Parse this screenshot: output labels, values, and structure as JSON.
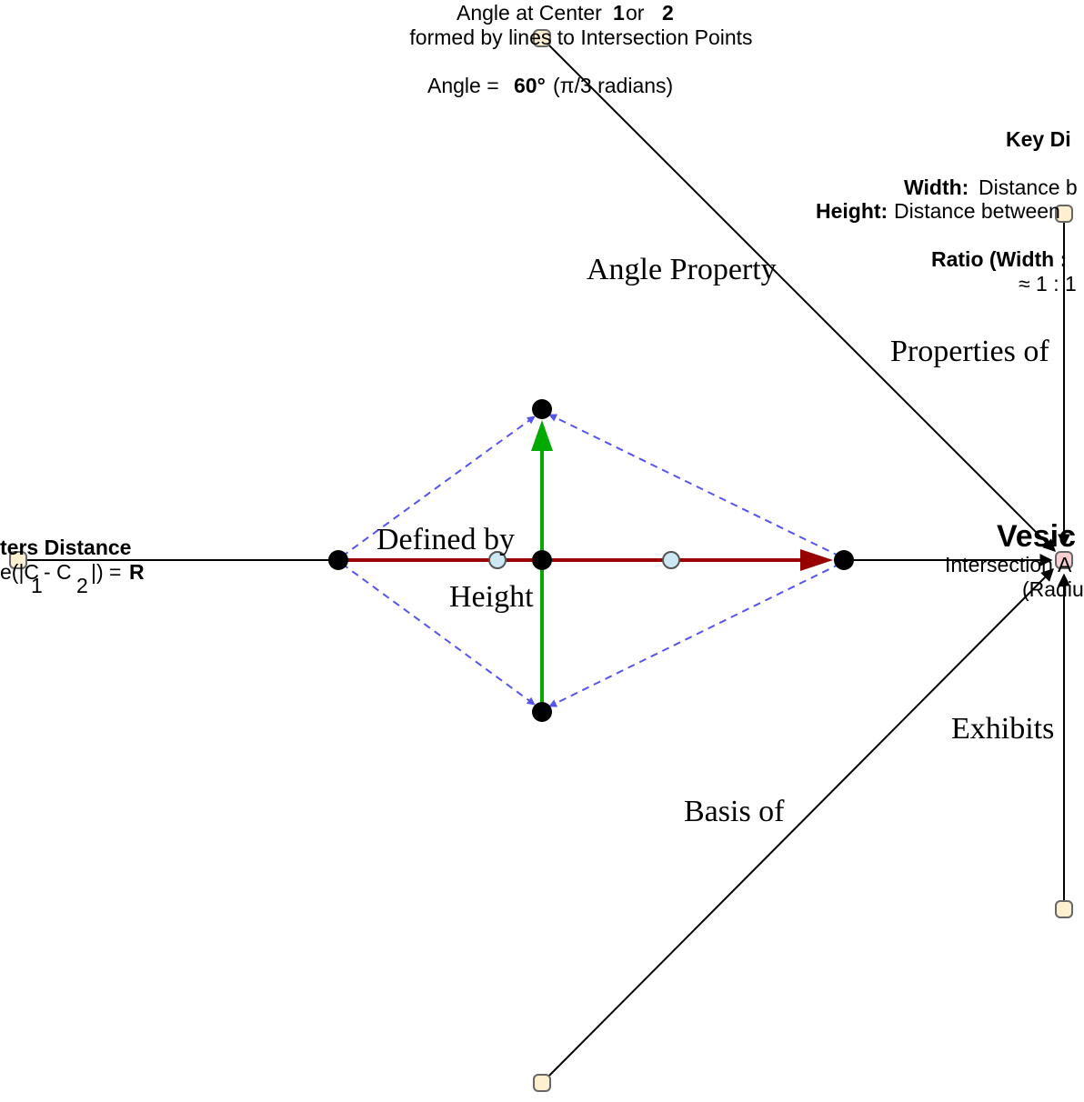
{
  "angle_note": {
    "line1_prefix": "Angle at Center",
    "line1_c1": "1",
    "line1_or": "or",
    "line1_c2": "2",
    "line2": "formed by lines to Intersection Points",
    "angle_prefix": "Angle =",
    "angle_value": "60°",
    "angle_suffix": "(π/3 radians)"
  },
  "key_dimensions": {
    "title": "Key Di",
    "width_label": "Width:",
    "width_text": "Distance b",
    "height_label": "Height:",
    "height_text": "Distance between",
    "ratio_label": "Ratio (Width :",
    "ratio_value": "≈ 1 : 1"
  },
  "centers_distance": {
    "title": "ters Distance",
    "formula_prefix": "e(|C",
    "formula_sub1": "1",
    "formula_mid": "- C",
    "formula_sub2": "2",
    "formula_suffix": "|) =",
    "formula_value": "R"
  },
  "vesica": {
    "title": "Vesic",
    "line1": "Intersection A",
    "line2": "(Radiu"
  },
  "edge_labels": {
    "angle_property": "Angle Property",
    "properties_of": "Properties of",
    "defined_by": "Defined by",
    "height": "Height",
    "exhibits": "Exhibits",
    "basis_of": "Basis of"
  },
  "colors": {
    "dashed_arrows": "#5555ee",
    "vertical_arrow": "#00aa00",
    "horizontal_arrow": "#990000",
    "note_node_fill": "#fdefcf",
    "circle_center_fill": "#cde8f2",
    "vesica_node_fill": "#f7cfd3"
  }
}
